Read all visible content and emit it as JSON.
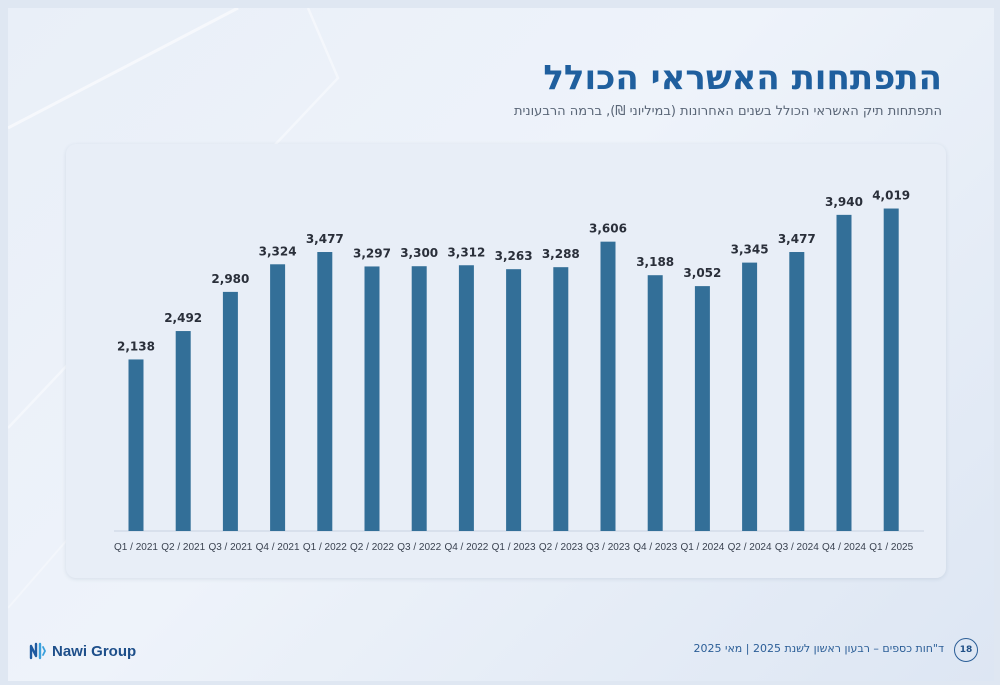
{
  "header": {
    "title": "התפתחות האשראי הכולל",
    "subtitle": "התפתחות תיק האשראי הכולל בשנים האחרונות (במיליוני ₪), ברמה הרבעונית"
  },
  "footer": {
    "brand": "Nawi Group",
    "report_text": "ד\"חות כספים – רבעון ראשון לשנת 2025 | מאי 2025",
    "page_number": "18"
  },
  "colors": {
    "bar": "#336f98",
    "title": "#1f5f9e",
    "label": "#2a2f3a"
  },
  "chart_data": {
    "type": "bar",
    "categories": [
      "Q1 / 2021",
      "Q2 / 2021",
      "Q3 / 2021",
      "Q4 / 2021",
      "Q1 / 2022",
      "Q2 / 2022",
      "Q3 / 2022",
      "Q4 / 2022",
      "Q1 / 2023",
      "Q2 / 2023",
      "Q3 / 2023",
      "Q4 / 2023",
      "Q1 / 2024",
      "Q2 / 2024",
      "Q3 / 2024",
      "Q4 / 2024",
      "Q1 / 2025"
    ],
    "values": [
      2138,
      2492,
      2980,
      3324,
      3477,
      3297,
      3300,
      3312,
      3263,
      3288,
      3606,
      3188,
      3052,
      3345,
      3477,
      3940,
      4019
    ],
    "value_labels": [
      "2,138",
      "2,492",
      "2,980",
      "3,324",
      "3,477",
      "3,297",
      "3,300",
      "3,312",
      "3,263",
      "3,288",
      "3,606",
      "3,188",
      "3,052",
      "3,345",
      "3,477",
      "3,940",
      "4,019"
    ],
    "ylim": [
      0,
      4200
    ],
    "grid": false,
    "legend": "none"
  }
}
